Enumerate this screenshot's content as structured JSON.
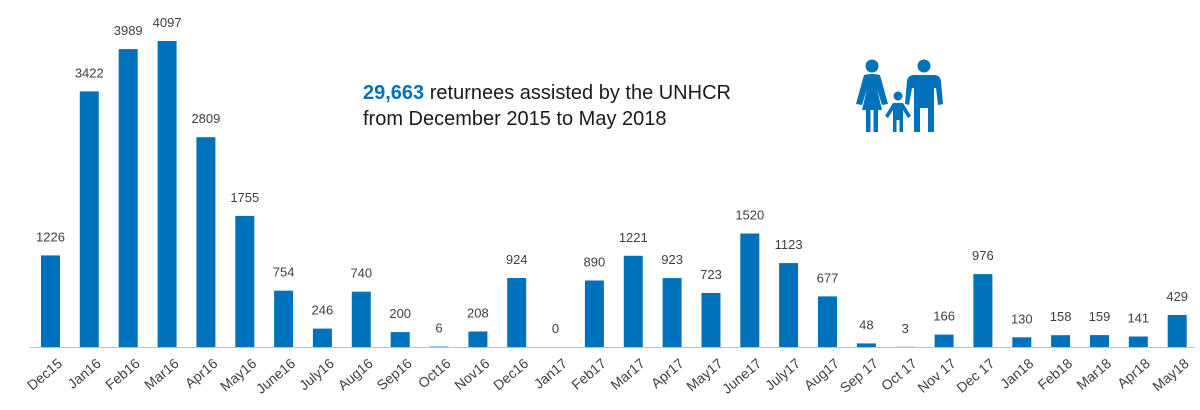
{
  "colors": {
    "bar": "#0072bc",
    "text": "#404040",
    "axis": "#bfbfbf",
    "highlight": "#0072bc"
  },
  "headline": {
    "total": "29,663",
    "line1_rest": " returnees assisted by the UNHCR",
    "line2": "from December 2015 to May 2018"
  },
  "icon": "family-icon",
  "chart_data": {
    "type": "bar",
    "categories": [
      "Dec15",
      "Jan16",
      "Feb16",
      "Mar16",
      "Apr16",
      "May16",
      "June16",
      "July16",
      "Aug16",
      "Sep16",
      "Oct16",
      "Nov16",
      "Dec16",
      "Jan17",
      "Feb17",
      "Mar17",
      "Apr17",
      "May17",
      "June17",
      "July17",
      "Aug17",
      "Sep 17",
      "Oct 17",
      "Nov 17",
      "Dec 17",
      "Jan18",
      "Feb18",
      "Mar18",
      "Apr18",
      "May18"
    ],
    "values": [
      1226,
      3422,
      3989,
      4097,
      2809,
      1755,
      754,
      246,
      740,
      200,
      6,
      208,
      924,
      0,
      890,
      1221,
      923,
      723,
      1520,
      1123,
      677,
      48,
      3,
      166,
      976,
      130,
      158,
      159,
      141,
      429
    ],
    "ylim": [
      0,
      4097
    ],
    "data_labels": true,
    "grid": false
  }
}
